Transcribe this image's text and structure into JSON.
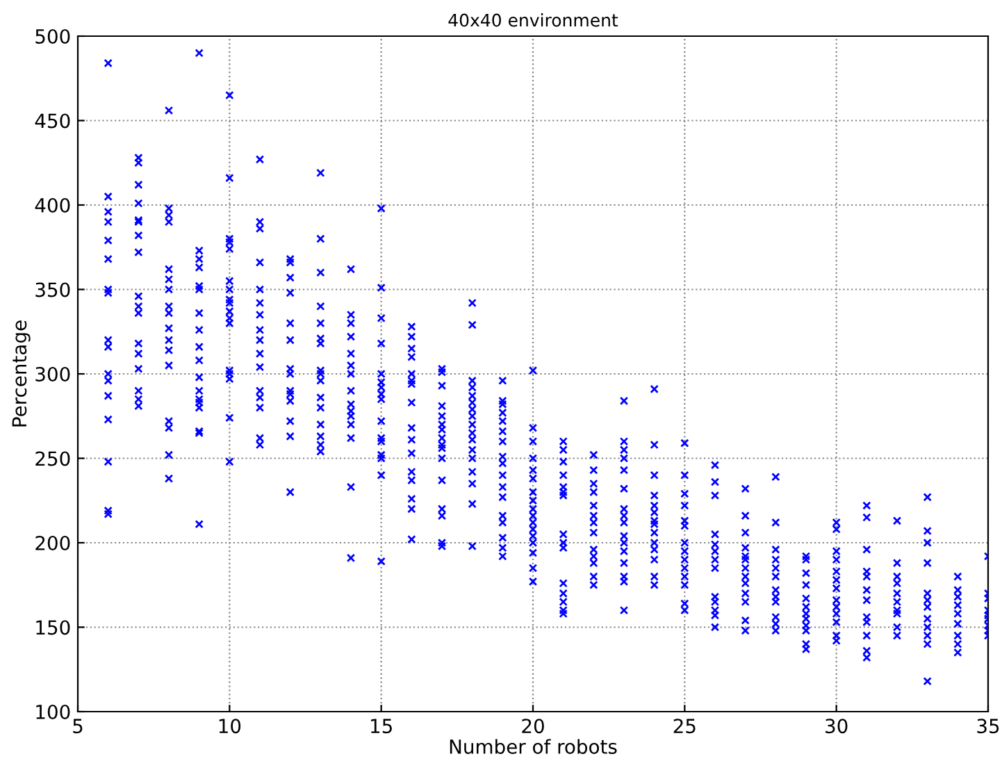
{
  "chart_data": {
    "type": "scatter",
    "title": "40x40 environment",
    "xlabel": "Number of robots",
    "ylabel": "Percentage",
    "xlim": [
      5,
      35
    ],
    "xticks": [
      5,
      10,
      15,
      20,
      25,
      30,
      35
    ],
    "ylim": [
      100,
      500
    ],
    "yticks": [
      100,
      150,
      200,
      250,
      300,
      350,
      400,
      450,
      500
    ],
    "grid": true,
    "marker": "cross",
    "series": [
      {
        "color": "#0000ff",
        "x": [
          6,
          6,
          6,
          6,
          6,
          6,
          6,
          6,
          6,
          6,
          6,
          6,
          6,
          6,
          6,
          6,
          6,
          7,
          7,
          7,
          7,
          7,
          7,
          7,
          7,
          7,
          7,
          7,
          7,
          7,
          7,
          7,
          7,
          7,
          8,
          8,
          8,
          8,
          8,
          8,
          8,
          8,
          8,
          8,
          8,
          8,
          8,
          8,
          8,
          8,
          8,
          9,
          9,
          9,
          9,
          9,
          9,
          9,
          9,
          9,
          9,
          9,
          9,
          9,
          9,
          9,
          9,
          9,
          9,
          10,
          10,
          10,
          10,
          10,
          10,
          10,
          10,
          10,
          10,
          10,
          10,
          10,
          10,
          10,
          10,
          10,
          11,
          11,
          11,
          11,
          11,
          11,
          11,
          11,
          11,
          11,
          11,
          11,
          11,
          11,
          11,
          11,
          12,
          12,
          12,
          12,
          12,
          12,
          12,
          12,
          12,
          12,
          12,
          12,
          12,
          12,
          13,
          13,
          13,
          13,
          13,
          13,
          13,
          13,
          13,
          13,
          13,
          13,
          13,
          13,
          13,
          13,
          14,
          14,
          14,
          14,
          14,
          14,
          14,
          14,
          14,
          14,
          14,
          14,
          14,
          14,
          14,
          15,
          15,
          15,
          15,
          15,
          15,
          15,
          15,
          15,
          15,
          15,
          15,
          15,
          15,
          15,
          15,
          16,
          16,
          16,
          16,
          16,
          16,
          16,
          16,
          16,
          16,
          16,
          16,
          16,
          16,
          16,
          16,
          17,
          17,
          17,
          17,
          17,
          17,
          17,
          17,
          17,
          17,
          17,
          17,
          17,
          17,
          17,
          17,
          18,
          18,
          18,
          18,
          18,
          18,
          18,
          18,
          18,
          18,
          18,
          18,
          18,
          18,
          18,
          18,
          18,
          19,
          19,
          19,
          19,
          19,
          19,
          19,
          19,
          19,
          19,
          19,
          19,
          19,
          19,
          19,
          19,
          19,
          20,
          20,
          20,
          20,
          20,
          20,
          20,
          20,
          20,
          20,
          20,
          20,
          20,
          20,
          20,
          20,
          20,
          21,
          21,
          21,
          21,
          21,
          21,
          21,
          21,
          21,
          21,
          21,
          21,
          21,
          21,
          21,
          22,
          22,
          22,
          22,
          22,
          22,
          22,
          22,
          22,
          22,
          22,
          22,
          22,
          23,
          23,
          23,
          23,
          23,
          23,
          23,
          23,
          23,
          23,
          23,
          23,
          23,
          23,
          23,
          23,
          24,
          24,
          24,
          24,
          24,
          24,
          24,
          24,
          24,
          24,
          24,
          24,
          24,
          24,
          25,
          25,
          25,
          25,
          25,
          25,
          25,
          25,
          25,
          25,
          25,
          25,
          25,
          25,
          26,
          26,
          26,
          26,
          26,
          26,
          26,
          26,
          26,
          26,
          26,
          26,
          26,
          27,
          27,
          27,
          27,
          27,
          27,
          27,
          27,
          27,
          27,
          27,
          27,
          27,
          28,
          28,
          28,
          28,
          28,
          28,
          28,
          28,
          28,
          28,
          28,
          28,
          29,
          29,
          29,
          29,
          29,
          29,
          29,
          29,
          29,
          29,
          29,
          29,
          30,
          30,
          30,
          30,
          30,
          30,
          30,
          30,
          30,
          30,
          30,
          30,
          30,
          31,
          31,
          31,
          31,
          31,
          31,
          31,
          31,
          31,
          31,
          31,
          31,
          32,
          32,
          32,
          32,
          32,
          32,
          32,
          32,
          32,
          32,
          33,
          33,
          33,
          33,
          33,
          33,
          33,
          33,
          33,
          33,
          33,
          33,
          34,
          34,
          34,
          34,
          34,
          34,
          34,
          34,
          34,
          35,
          35,
          35,
          35,
          35,
          35,
          35,
          35,
          35
        ],
        "values": [
          484,
          405,
          396,
          390,
          379,
          368,
          350,
          348,
          320,
          316,
          300,
          296,
          287,
          273,
          248,
          219,
          217,
          428,
          425,
          412,
          401,
          391,
          390,
          382,
          372,
          346,
          340,
          336,
          318,
          312,
          303,
          290,
          285,
          281,
          456,
          398,
          394,
          390,
          362,
          356,
          350,
          340,
          336,
          327,
          320,
          314,
          305,
          272,
          268,
          252,
          238,
          490,
          373,
          368,
          363,
          352,
          350,
          336,
          326,
          316,
          308,
          298,
          290,
          285,
          283,
          280,
          266,
          265,
          211,
          465,
          416,
          380,
          378,
          374,
          355,
          350,
          344,
          342,
          337,
          333,
          330,
          302,
          300,
          297,
          274,
          248,
          427,
          390,
          386,
          366,
          350,
          342,
          335,
          326,
          320,
          312,
          304,
          290,
          286,
          280,
          262,
          258,
          368,
          366,
          357,
          348,
          330,
          320,
          303,
          300,
          290,
          288,
          284,
          272,
          263,
          230,
          419,
          380,
          360,
          340,
          330,
          321,
          318,
          302,
          300,
          296,
          286,
          280,
          270,
          263,
          258,
          254,
          362,
          335,
          330,
          322,
          312,
          305,
          300,
          290,
          282,
          278,
          275,
          270,
          262,
          233,
          191,
          398,
          351,
          333,
          318,
          300,
          295,
          292,
          288,
          285,
          272,
          262,
          260,
          252,
          250,
          240,
          189,
          328,
          322,
          315,
          310,
          300,
          296,
          294,
          283,
          268,
          261,
          253,
          242,
          237,
          226,
          220,
          202,
          303,
          301,
          293,
          281,
          275,
          270,
          267,
          262,
          258,
          256,
          250,
          237,
          220,
          216,
          200,
          198,
          342,
          329,
          296,
          292,
          287,
          283,
          279,
          275,
          270,
          265,
          261,
          255,
          250,
          242,
          235,
          223,
          198,
          296,
          284,
          282,
          277,
          272,
          266,
          260,
          251,
          247,
          240,
          233,
          227,
          216,
          212,
          203,
          197,
          192,
          302,
          268,
          260,
          250,
          243,
          238,
          230,
          225,
          220,
          216,
          212,
          208,
          204,
          200,
          194,
          185,
          177,
          260,
          255,
          248,
          240,
          233,
          230,
          228,
          205,
          200,
          197,
          176,
          170,
          165,
          160,
          158,
          252,
          243,
          235,
          230,
          222,
          216,
          212,
          206,
          196,
          192,
          188,
          180,
          175,
          284,
          260,
          255,
          250,
          243,
          232,
          220,
          216,
          212,
          204,
          200,
          195,
          188,
          180,
          177,
          160,
          291,
          258,
          240,
          228,
          222,
          218,
          213,
          211,
          206,
          200,
          196,
          190,
          180,
          175,
          259,
          240,
          229,
          222,
          213,
          210,
          200,
          195,
          190,
          185,
          180,
          175,
          164,
          160,
          246,
          236,
          228,
          205,
          199,
          195,
          190,
          185,
          168,
          165,
          160,
          157,
          150,
          232,
          216,
          206,
          197,
          192,
          190,
          185,
          180,
          176,
          170,
          165,
          154,
          148,
          239,
          212,
          196,
          190,
          185,
          180,
          172,
          168,
          165,
          156,
          152,
          148,
          192,
          190,
          182,
          175,
          167,
          162,
          158,
          155,
          151,
          148,
          140,
          137,
          212,
          208,
          195,
          190,
          183,
          178,
          173,
          166,
          162,
          158,
          153,
          145,
          142,
          222,
          215,
          196,
          183,
          180,
          172,
          166,
          156,
          153,
          145,
          136,
          132,
          213,
          188,
          180,
          176,
          170,
          165,
          160,
          158,
          150,
          145,
          227,
          207,
          200,
          188,
          170,
          166,
          162,
          155,
          150,
          145,
          140,
          118,
          180,
          172,
          168,
          163,
          158,
          152,
          145,
          140,
          135,
          192,
          170,
          167,
          160,
          157,
          155,
          151,
          148,
          145
        ]
      }
    ]
  }
}
